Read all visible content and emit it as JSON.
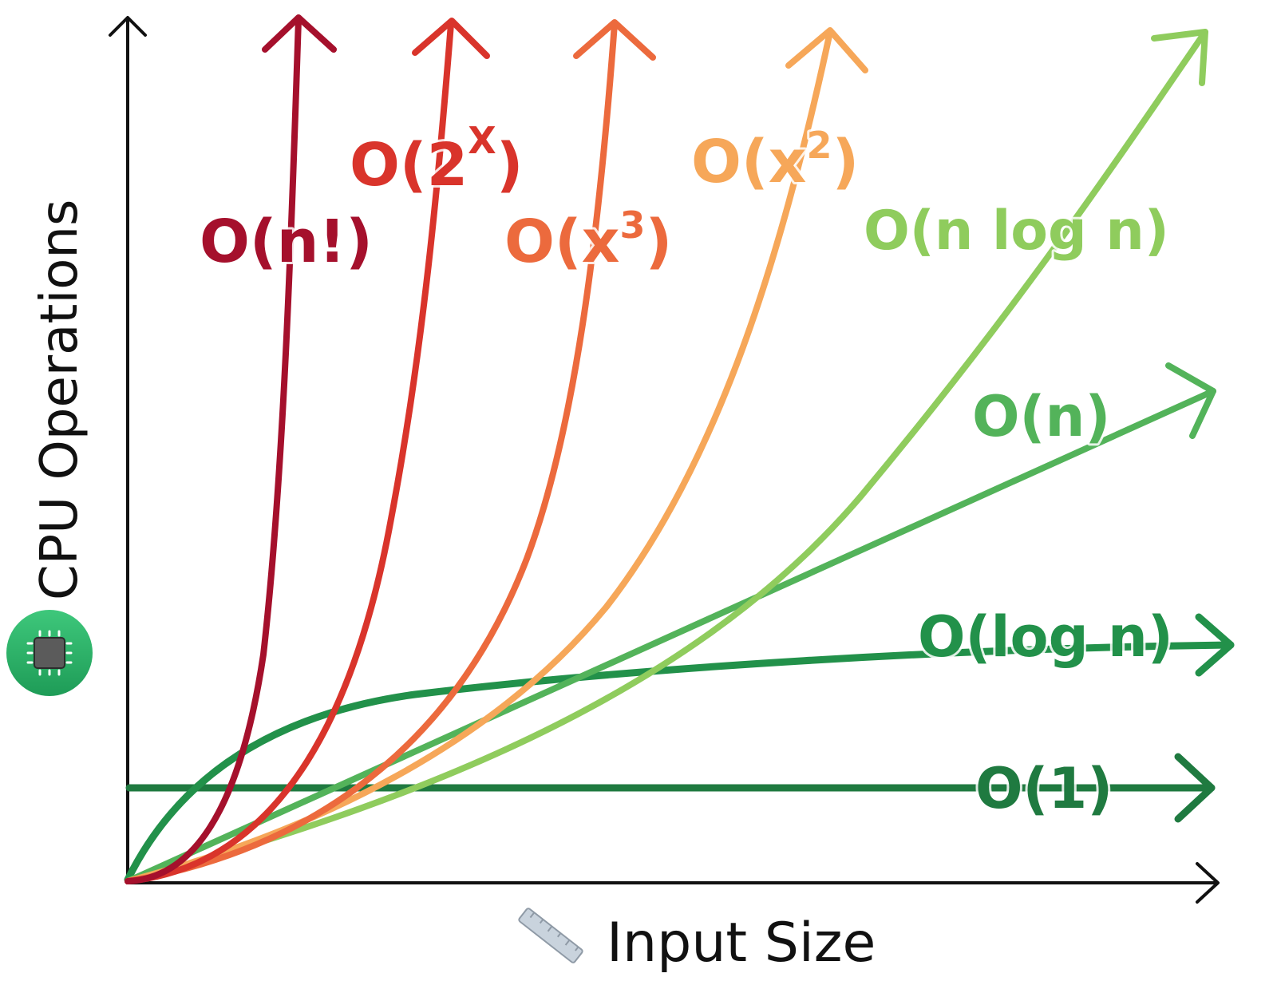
{
  "diagram": {
    "y_axis_label": "CPU Operations",
    "x_axis_label": "Input Size",
    "y_axis_icon": "cpu-chip-icon",
    "x_axis_icon": "ruler-icon",
    "curves": [
      {
        "id": "factorial",
        "label": "O(n!)",
        "label_base": "O(n!)",
        "superscript": "",
        "label_tail": "",
        "color": "#a5102c"
      },
      {
        "id": "exponential",
        "label": "O(2^X)",
        "label_base": "O(2",
        "superscript": "X",
        "label_tail": ")",
        "color": "#d9342b"
      },
      {
        "id": "cubic",
        "label": "O(x^3)",
        "label_base": "O(x",
        "superscript": "3",
        "label_tail": ")",
        "color": "#ec6a3d"
      },
      {
        "id": "quadratic",
        "label": "O(x^2)",
        "label_base": "O(x",
        "superscript": "2",
        "label_tail": ")",
        "color": "#f6a759"
      },
      {
        "id": "nlogn",
        "label": "O(n log n)",
        "label_base": "O(n log n)",
        "superscript": "",
        "label_tail": "",
        "color": "#8fcc5d"
      },
      {
        "id": "linear",
        "label": "O(n)",
        "label_base": "O(n)",
        "superscript": "",
        "label_tail": "",
        "color": "#53b35a"
      },
      {
        "id": "log",
        "label": "O(log n)",
        "label_base": "O(log n)",
        "superscript": "",
        "label_tail": "",
        "color": "#22914a"
      },
      {
        "id": "constant",
        "label": "O(1)",
        "label_base": "O(1)",
        "superscript": "",
        "label_tail": "",
        "color": "#1f7a40"
      }
    ]
  }
}
